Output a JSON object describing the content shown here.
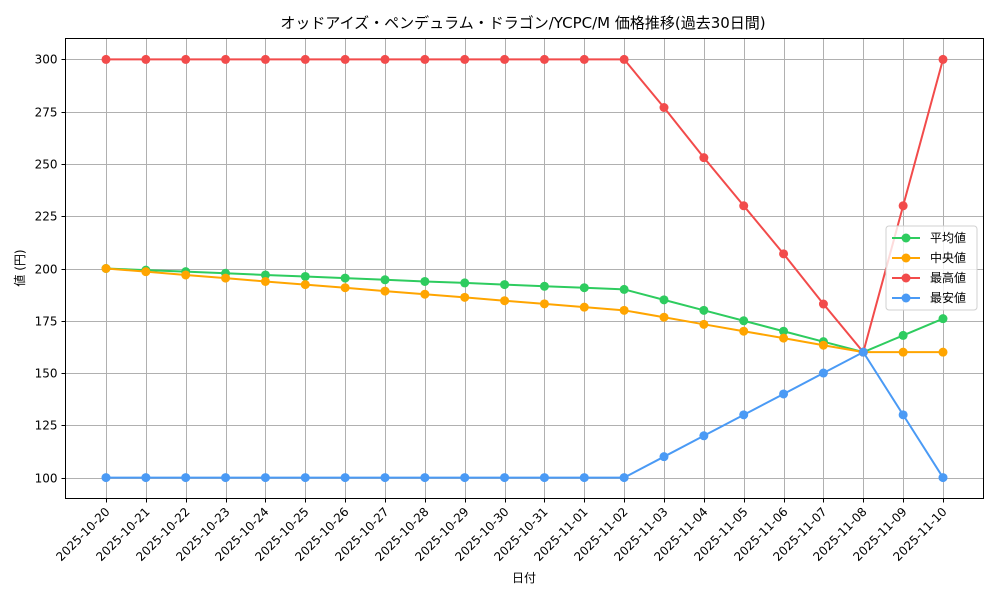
{
  "chart_data": {
    "type": "line",
    "title": "オッドアイズ・ペンデュラム・ドラゴン/YCPC/M 価格推移(過去30日間)",
    "xlabel": "日付",
    "ylabel": "値 (円)",
    "ylim": [
      90,
      310
    ],
    "yticks": [
      100,
      125,
      150,
      175,
      200,
      225,
      250,
      275,
      300
    ],
    "grid": true,
    "legend_position": "center right",
    "categories": [
      "2025-10-20",
      "2025-10-21",
      "2025-10-22",
      "2025-10-23",
      "2025-10-24",
      "2025-10-25",
      "2025-10-26",
      "2025-10-27",
      "2025-10-28",
      "2025-10-29",
      "2025-10-30",
      "2025-10-31",
      "2025-11-01",
      "2025-11-02",
      "2025-11-03",
      "2025-11-04",
      "2025-11-05",
      "2025-11-06",
      "2025-11-07",
      "2025-11-08",
      "2025-11-09",
      "2025-11-10"
    ],
    "series": [
      {
        "name": "平均値",
        "color": "#2ecc5f",
        "values": [
          200,
          199.2,
          198.5,
          197.7,
          196.9,
          196.2,
          195.4,
          194.6,
          193.8,
          193.1,
          192.3,
          191.5,
          190.8,
          190,
          185,
          180,
          175,
          170,
          165,
          160,
          168,
          176
        ]
      },
      {
        "name": "中央値",
        "color": "#ffa500",
        "values": [
          200,
          198.5,
          196.9,
          195.4,
          193.8,
          192.3,
          190.8,
          189.2,
          187.7,
          186.2,
          184.6,
          183.1,
          181.5,
          180,
          176.7,
          173.3,
          170,
          166.7,
          163.3,
          160,
          160,
          160
        ]
      },
      {
        "name": "最高値",
        "color": "#f24b4b",
        "values": [
          300,
          300,
          300,
          300,
          300,
          300,
          300,
          300,
          300,
          300,
          300,
          300,
          300,
          300,
          277,
          253,
          230,
          207,
          183,
          160,
          230,
          300
        ]
      },
      {
        "name": "最安値",
        "color": "#4a9af5",
        "values": [
          100,
          100,
          100,
          100,
          100,
          100,
          100,
          100,
          100,
          100,
          100,
          100,
          100,
          100,
          110,
          120,
          130,
          140,
          150,
          160,
          130,
          100
        ]
      }
    ]
  }
}
